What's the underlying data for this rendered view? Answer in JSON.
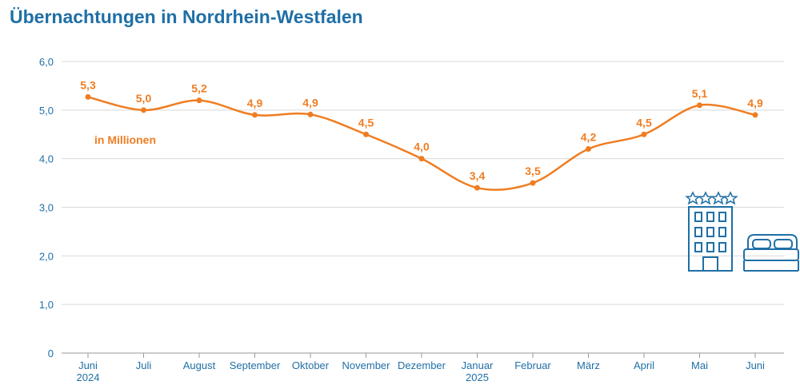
{
  "title": "Übernachtungen in Nordrhein-Westfalen",
  "colors": {
    "title": "#1f6fa6",
    "series": "#ef7d22",
    "axis_text": "#1f6fa6",
    "grid": "#d9d9d9"
  },
  "icons": [
    "hotel-building-icon",
    "bed-icon"
  ],
  "chart_data": {
    "type": "line",
    "title": "Übernachtungen in Nordrhein-Westfalen",
    "xlabel": "",
    "ylabel": "",
    "unit_label": "in Millionen",
    "ylim": [
      0,
      6
    ],
    "yticks": [
      "0",
      "1,0",
      "2,0",
      "3,0",
      "4,0",
      "5,0",
      "6,0"
    ],
    "grid": true,
    "categories": [
      [
        "Juni",
        "2024"
      ],
      [
        "Juli"
      ],
      [
        "August"
      ],
      [
        "September"
      ],
      [
        "Oktober"
      ],
      [
        "November"
      ],
      [
        "Dezember"
      ],
      [
        "Januar",
        "2025"
      ],
      [
        "Februar"
      ],
      [
        "März"
      ],
      [
        "April"
      ],
      [
        "Mai"
      ],
      [
        "Juni"
      ]
    ],
    "series": [
      {
        "values": [
          5.27,
          5.0,
          5.2,
          4.9,
          4.91,
          4.5,
          4.0,
          3.4,
          3.5,
          4.2,
          4.5,
          5.1,
          4.9
        ],
        "labels": [
          "5,3",
          "5,0",
          "5,2",
          "4,9",
          "4,9",
          "4,5",
          "4,0",
          "3,4",
          "3,5",
          "4,2",
          "4,5",
          "5,1",
          "4,9"
        ]
      }
    ]
  }
}
